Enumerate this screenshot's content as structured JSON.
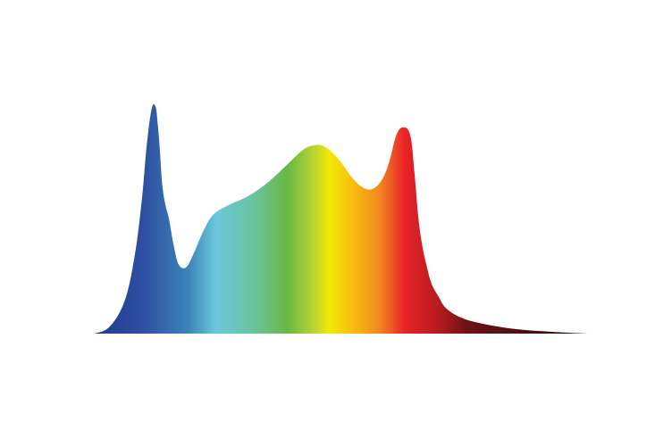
{
  "chart_data": {
    "type": "area",
    "title": "",
    "xlabel": "",
    "ylabel": "",
    "xlim": [
      0,
      100
    ],
    "ylim": [
      0,
      1
    ],
    "grid": false,
    "legend": "none",
    "series": [
      {
        "name": "spectrum",
        "x": [
          0,
          3,
          6,
          8,
          9.5,
          10.5,
          11.5,
          12.3,
          12.7,
          13.1,
          13.6,
          14.2,
          15,
          16,
          17,
          18.5,
          20,
          22,
          24,
          27,
          31,
          35,
          39,
          42,
          44,
          46,
          48,
          50,
          52,
          54,
          56,
          58,
          59.5,
          61,
          62.5,
          63.8,
          64.6,
          65.4,
          66.2,
          67,
          68,
          69.5,
          71,
          74,
          78,
          85,
          93,
          100
        ],
        "values": [
          0,
          0.03,
          0.14,
          0.33,
          0.58,
          0.82,
          0.98,
          0.99,
          0.92,
          0.82,
          0.66,
          0.57,
          0.5,
          0.38,
          0.3,
          0.29,
          0.35,
          0.45,
          0.52,
          0.56,
          0.6,
          0.66,
          0.74,
          0.8,
          0.82,
          0.82,
          0.79,
          0.74,
          0.68,
          0.64,
          0.63,
          0.67,
          0.75,
          0.87,
          0.9,
          0.86,
          0.7,
          0.5,
          0.38,
          0.3,
          0.22,
          0.16,
          0.11,
          0.07,
          0.045,
          0.02,
          0.007,
          0
        ]
      }
    ],
    "gradient_stops": [
      {
        "offset": 0.0,
        "color": "#1f3b8f"
      },
      {
        "offset": 0.1,
        "color": "#2f4fa2"
      },
      {
        "offset": 0.19,
        "color": "#3a86b8"
      },
      {
        "offset": 0.245,
        "color": "#6cc7dc"
      },
      {
        "offset": 0.32,
        "color": "#69c49e"
      },
      {
        "offset": 0.39,
        "color": "#69b843"
      },
      {
        "offset": 0.44,
        "color": "#b6d335"
      },
      {
        "offset": 0.475,
        "color": "#f2ea05"
      },
      {
        "offset": 0.52,
        "color": "#f7c00d"
      },
      {
        "offset": 0.575,
        "color": "#f0891f"
      },
      {
        "offset": 0.625,
        "color": "#ea2428"
      },
      {
        "offset": 0.7,
        "color": "#b11a1e"
      },
      {
        "offset": 0.75,
        "color": "#6e1214"
      },
      {
        "offset": 1.0,
        "color": "#24090a"
      }
    ]
  }
}
